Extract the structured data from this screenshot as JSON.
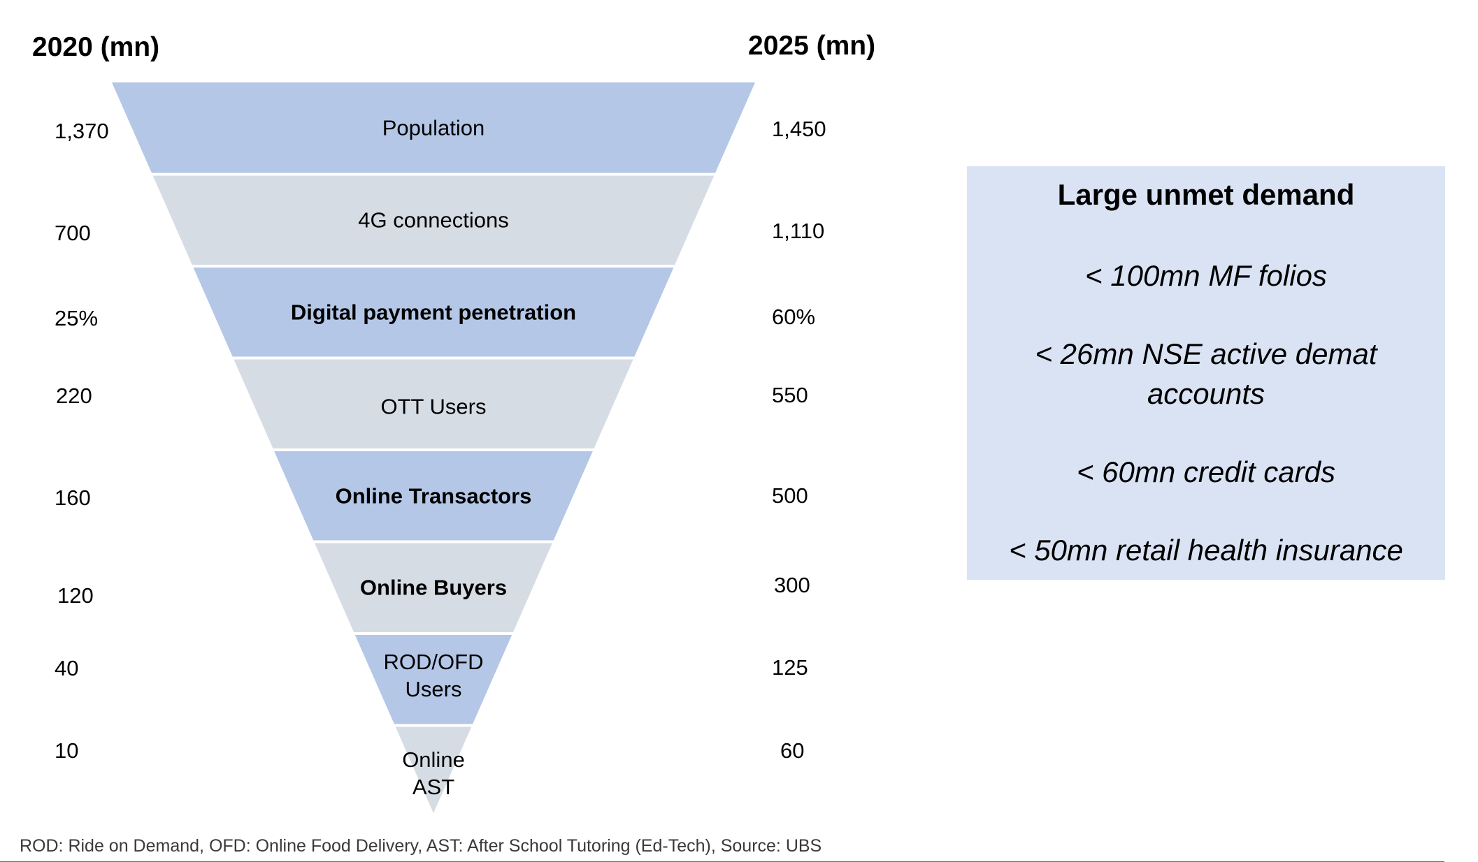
{
  "headers": {
    "left": "2020 (mn)",
    "right": "2025 (mn)"
  },
  "funnel": {
    "colors": {
      "blue": "#b4c7e7",
      "gray": "#d6dce4"
    },
    "segments": [
      {
        "label": "Population",
        "bold": false,
        "fill": "blue",
        "val_2020": "1,370",
        "val_2025": "1,450"
      },
      {
        "label": "4G connections",
        "bold": false,
        "fill": "gray",
        "val_2020": "700",
        "val_2025": "1,110"
      },
      {
        "label": "Digital payment penetration",
        "bold": true,
        "fill": "blue",
        "val_2020": "25%",
        "val_2025": "60%"
      },
      {
        "label": "OTT Users",
        "bold": false,
        "fill": "gray",
        "val_2020": "220",
        "val_2025": "550"
      },
      {
        "label": "Online Transactors",
        "bold": true,
        "fill": "blue",
        "val_2020": "160",
        "val_2025": "500"
      },
      {
        "label": "Online Buyers",
        "bold": true,
        "fill": "gray",
        "val_2020": "120",
        "val_2025": "300"
      },
      {
        "label": "ROD/OFD\nUsers",
        "bold": false,
        "fill": "blue",
        "val_2020": "40",
        "val_2025": "125"
      },
      {
        "label": "Online\nAST",
        "bold": false,
        "fill": "gray",
        "val_2020": "10",
        "val_2025": "60"
      }
    ]
  },
  "demand_box": {
    "title": "Large unmet demand",
    "items": [
      "< 100mn MF folios",
      "< 26mn NSE active demat accounts",
      "< 60mn credit cards",
      "< 50mn retail health insurance"
    ],
    "background": "#dae3f3"
  },
  "footnote": "ROD: Ride on Demand, OFD: Online Food Delivery, AST: After School Tutoring (Ed-Tech), Source: UBS"
}
